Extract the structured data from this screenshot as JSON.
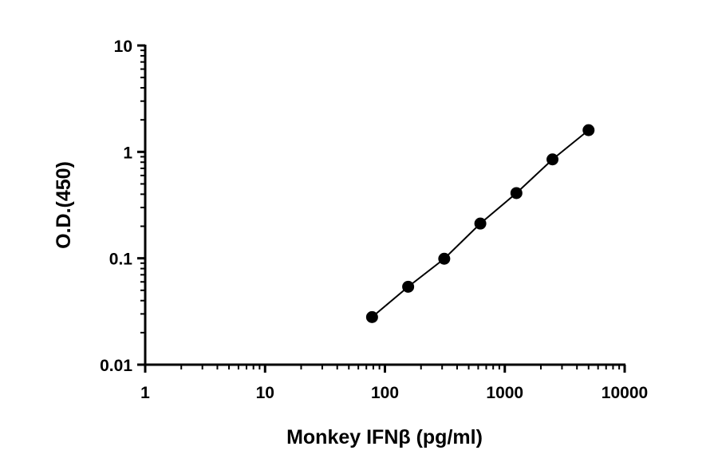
{
  "chart_data": {
    "type": "scatter",
    "title": "",
    "xlabel": "Monkey IFNβ (pg/ml)",
    "ylabel": "O.D.(450)",
    "xscale": "log",
    "yscale": "log",
    "xlim": [
      1,
      10000
    ],
    "ylim": [
      0.01,
      10
    ],
    "x_ticks": [
      "1",
      "10",
      "100",
      "1000",
      "10000"
    ],
    "y_ticks": [
      "0.01",
      "0.1",
      "1",
      "10"
    ],
    "grid": false,
    "legend": "none",
    "connected_line": true,
    "marker_color": "#000000",
    "x": [
      78.1,
      156.25,
      312.5,
      625,
      1250,
      2500,
      5000
    ],
    "y": [
      0.028,
      0.054,
      0.099,
      0.212,
      0.41,
      0.85,
      1.6
    ]
  }
}
